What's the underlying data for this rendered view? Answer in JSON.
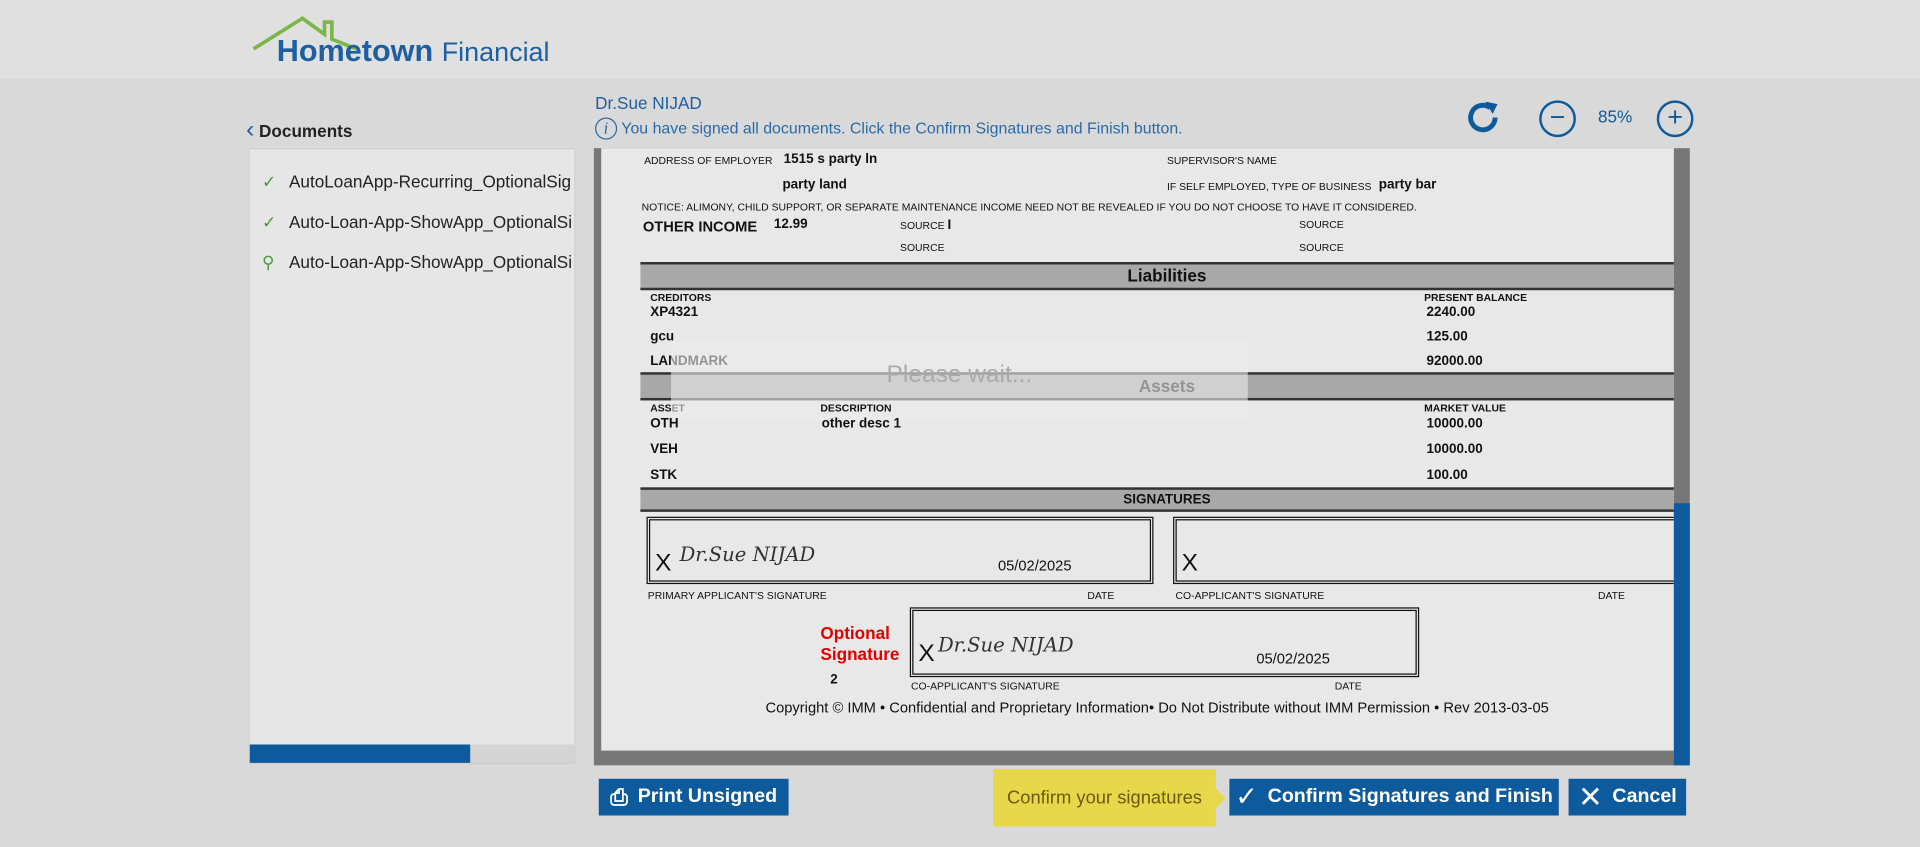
{
  "header": {
    "logo": "Hometown Financial",
    "logo_bold": "Hometown",
    "logo_light": "Financial"
  },
  "sidebar": {
    "back_label": "Documents",
    "progress_percent": 68,
    "items": [
      {
        "label": "AutoLoanApp-Recurring_OptionalSig",
        "status": "signed",
        "icon": "check-icon"
      },
      {
        "label": "Auto-Loan-App-ShowApp_OptionalSi",
        "status": "signed",
        "icon": "check-icon"
      },
      {
        "label": "Auto-Loan-App-ShowApp_OptionalSi",
        "status": "viewing",
        "icon": "magnifier-icon"
      }
    ]
  },
  "viewer": {
    "signer": "Dr.Sue NIJAD",
    "info": "You have signed all documents. Click the Confirm Signatures and Finish button.",
    "zoom": "85%",
    "loading": "Please wait..."
  },
  "document": {
    "addr_label": "ADDRESS OF EMPLOYER",
    "addr1": "1515 s party ln",
    "addr2": "party land",
    "supervisor_label": "SUPERVISOR'S NAME",
    "self_emp_label": "IF SELF EMPLOYED, TYPE OF BUSINESS",
    "business": "party bar",
    "notice": "NOTICE: ALIMONY, CHILD SUPPORT, OR SEPARATE MAINTENANCE INCOME NEED NOT BE REVEALED IF YOU DO NOT CHOOSE TO HAVE IT CONSIDERED.",
    "other_income_label": "OTHER INCOME",
    "other_income": "12.99",
    "source_label": "SOURCE",
    "source1": "I",
    "liabilities_title": "Liabilities",
    "creditors_label": "CREDITORS",
    "balance_label": "PRESENT BALANCE",
    "liabilities": [
      {
        "name": "XP4321",
        "balance": "2240.00"
      },
      {
        "name": "gcu",
        "balance": "125.00"
      },
      {
        "name": "LANDMARK",
        "balance": "92000.00"
      }
    ],
    "assets_title": "Assets",
    "asset_label": "ASSET",
    "desc_label": "DESCRIPTION",
    "value_label": "MARKET VALUE",
    "assets": [
      {
        "asset": "OTH",
        "desc": "other desc 1",
        "value": "10000.00"
      },
      {
        "asset": "VEH",
        "desc": "",
        "value": "10000.00"
      },
      {
        "asset": "STK",
        "desc": "",
        "value": "100.00"
      }
    ],
    "signatures_title": "SIGNATURES",
    "x": "X",
    "signature": "Dr.Sue NIJAD",
    "date": "05/02/2025",
    "primary_label": "PRIMARY APPLICANT'S SIGNATURE",
    "co_label": "CO-APPLICANT'S SIGNATURE",
    "date_label": "DATE",
    "optional_line1": "Optional",
    "optional_line2": "Signature",
    "optional_num": "2",
    "copyright": "Copyright © IMM • Confidential and Proprietary Information• Do Not Distribute without IMM Permission • Rev 2013-03-05"
  },
  "footer": {
    "print": "Print Unsigned",
    "tooltip": "Confirm your signatures",
    "confirm": "Confirm Signatures and Finish",
    "cancel": "Cancel"
  },
  "colors": {
    "brand_blue": "#0d5a9c",
    "tooltip_yellow": "#e6d84a",
    "optional_red": "#e00000",
    "check_green": "#4a9a3a"
  }
}
